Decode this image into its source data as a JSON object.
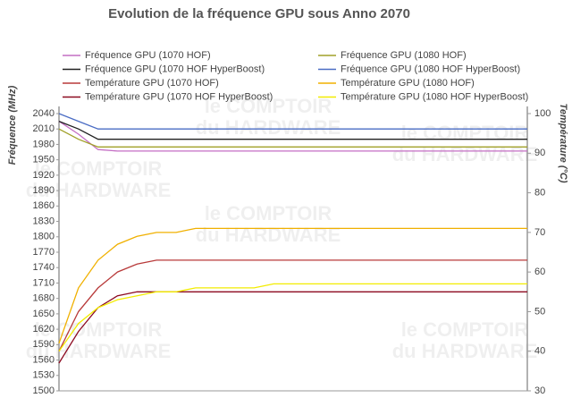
{
  "chart_data": {
    "type": "line",
    "title": "Evolution de la fréquence GPU sous Anno 2070",
    "y_label": "Fréquence (MHz)",
    "y2_label": "Température (°C)",
    "watermark": [
      "le COMPTOIR",
      "du HARDWARE"
    ],
    "categories": [
      null,
      null,
      null,
      null,
      null,
      null,
      null,
      null,
      null,
      null,
      null,
      null,
      null,
      null,
      null,
      null,
      null,
      null,
      null,
      null,
      null,
      null,
      null,
      null,
      null
    ],
    "ylim": [
      1500,
      2040
    ],
    "yticks": [
      1500,
      1530,
      1560,
      1590,
      1620,
      1650,
      1680,
      1710,
      1740,
      1770,
      1800,
      1830,
      1860,
      1890,
      1920,
      1950,
      1980,
      2010,
      2040
    ],
    "y2lim": [
      30,
      100
    ],
    "y2ticks": [
      30,
      40,
      50,
      60,
      70,
      80,
      90,
      100
    ],
    "grid": false,
    "series": [
      {
        "name": "Fréquence GPU (1070 HOF)",
        "color": "#c46ec4",
        "values": [
          2025,
          2000,
          1970,
          1967,
          1967,
          1967,
          1967,
          1967,
          1967,
          1967,
          1967,
          1967,
          1967,
          1967,
          1967,
          1967,
          1967,
          1967,
          1967,
          1967,
          1967,
          1967,
          1967,
          1967,
          1967
        ]
      },
      {
        "name": "Fréquence GPU (1080 HOF)",
        "color": "#a0a028",
        "values": [
          2010,
          1990,
          1975,
          1975,
          1975,
          1975,
          1975,
          1975,
          1975,
          1975,
          1975,
          1975,
          1975,
          1975,
          1975,
          1975,
          1975,
          1975,
          1975,
          1975,
          1975,
          1975,
          1975,
          1975,
          1975
        ]
      },
      {
        "name": "Fréquence GPU (1070 HOF HyperBoost)",
        "color": "#202020",
        "values": [
          2025,
          2010,
          1990,
          1990,
          1990,
          1990,
          1990,
          1990,
          1990,
          1990,
          1990,
          1990,
          1990,
          1990,
          1990,
          1990,
          1990,
          1990,
          1990,
          1990,
          1990,
          1990,
          1990,
          1990,
          1990
        ]
      },
      {
        "name": "Fréquence GPU (1080 HOF HyperBoost)",
        "color": "#4a6cc4",
        "values": [
          2040,
          2025,
          2010,
          2010,
          2010,
          2010,
          2010,
          2010,
          2010,
          2010,
          2010,
          2010,
          2010,
          2010,
          2010,
          2010,
          2010,
          2010,
          2010,
          2010,
          2010,
          2010,
          2010,
          2010,
          2010
        ]
      },
      {
        "name": "Température GPU  (1070 HOF)",
        "color": "#b83a3a",
        "axis": "y2",
        "values": [
          40,
          50,
          56,
          60,
          62,
          63,
          63,
          63,
          63,
          63,
          63,
          63,
          63,
          63,
          63,
          63,
          63,
          63,
          63,
          63,
          63,
          63,
          63,
          63,
          63
        ]
      },
      {
        "name": "Température GPU (1080 HOF)",
        "color": "#f0b000",
        "axis": "y2",
        "values": [
          42,
          56,
          63,
          67,
          69,
          70,
          70,
          71,
          71,
          71,
          71,
          71,
          71,
          71,
          71,
          71,
          71,
          71,
          71,
          71,
          71,
          71,
          71,
          71,
          71
        ]
      },
      {
        "name": "Température GPU (1070 HOF HyperBoost)",
        "color": "#8c0a20",
        "axis": "y2",
        "values": [
          37,
          45,
          51,
          54,
          55,
          55,
          55,
          55,
          55,
          55,
          55,
          55,
          55,
          55,
          55,
          55,
          55,
          55,
          55,
          55,
          55,
          55,
          55,
          55,
          55
        ]
      },
      {
        "name": "Température GPU (1080 HOF HyperBoost)",
        "color": "#f2ec00",
        "axis": "y2",
        "values": [
          40,
          47,
          51,
          53,
          54,
          55,
          55,
          56,
          56,
          56,
          56,
          57,
          57,
          57,
          57,
          57,
          57,
          57,
          57,
          57,
          57,
          57,
          57,
          57,
          57
        ]
      }
    ]
  }
}
